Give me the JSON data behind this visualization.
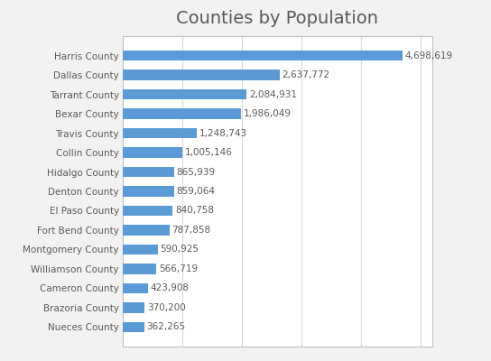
{
  "title": "Counties by Population",
  "counties": [
    "Harris County",
    "Dallas County",
    "Tarrant County",
    "Bexar County",
    "Travis County",
    "Collin County",
    "Hidalgo County",
    "Denton County",
    "El Paso County",
    "Fort Bend County",
    "Montgomery County",
    "Williamson County",
    "Cameron County",
    "Brazoria County",
    "Nueces County"
  ],
  "populations": [
    4698619,
    2637772,
    2084931,
    1986049,
    1248743,
    1005146,
    865939,
    859064,
    840758,
    787858,
    590925,
    566719,
    423908,
    370200,
    362265
  ],
  "bar_color": "#5B9BD5",
  "fig_bg_color": "#F2F2F2",
  "plot_bg_color": "#FFFFFF",
  "title_fontsize": 14,
  "title_color": "#595959",
  "label_fontsize": 7.5,
  "value_fontsize": 7.5,
  "value_color": "#595959",
  "tick_label_color": "#595959",
  "grid_color": "#D9D9D9",
  "bar_height": 0.55,
  "xlim_max": 5200000,
  "border_color": "#BFBFBF"
}
